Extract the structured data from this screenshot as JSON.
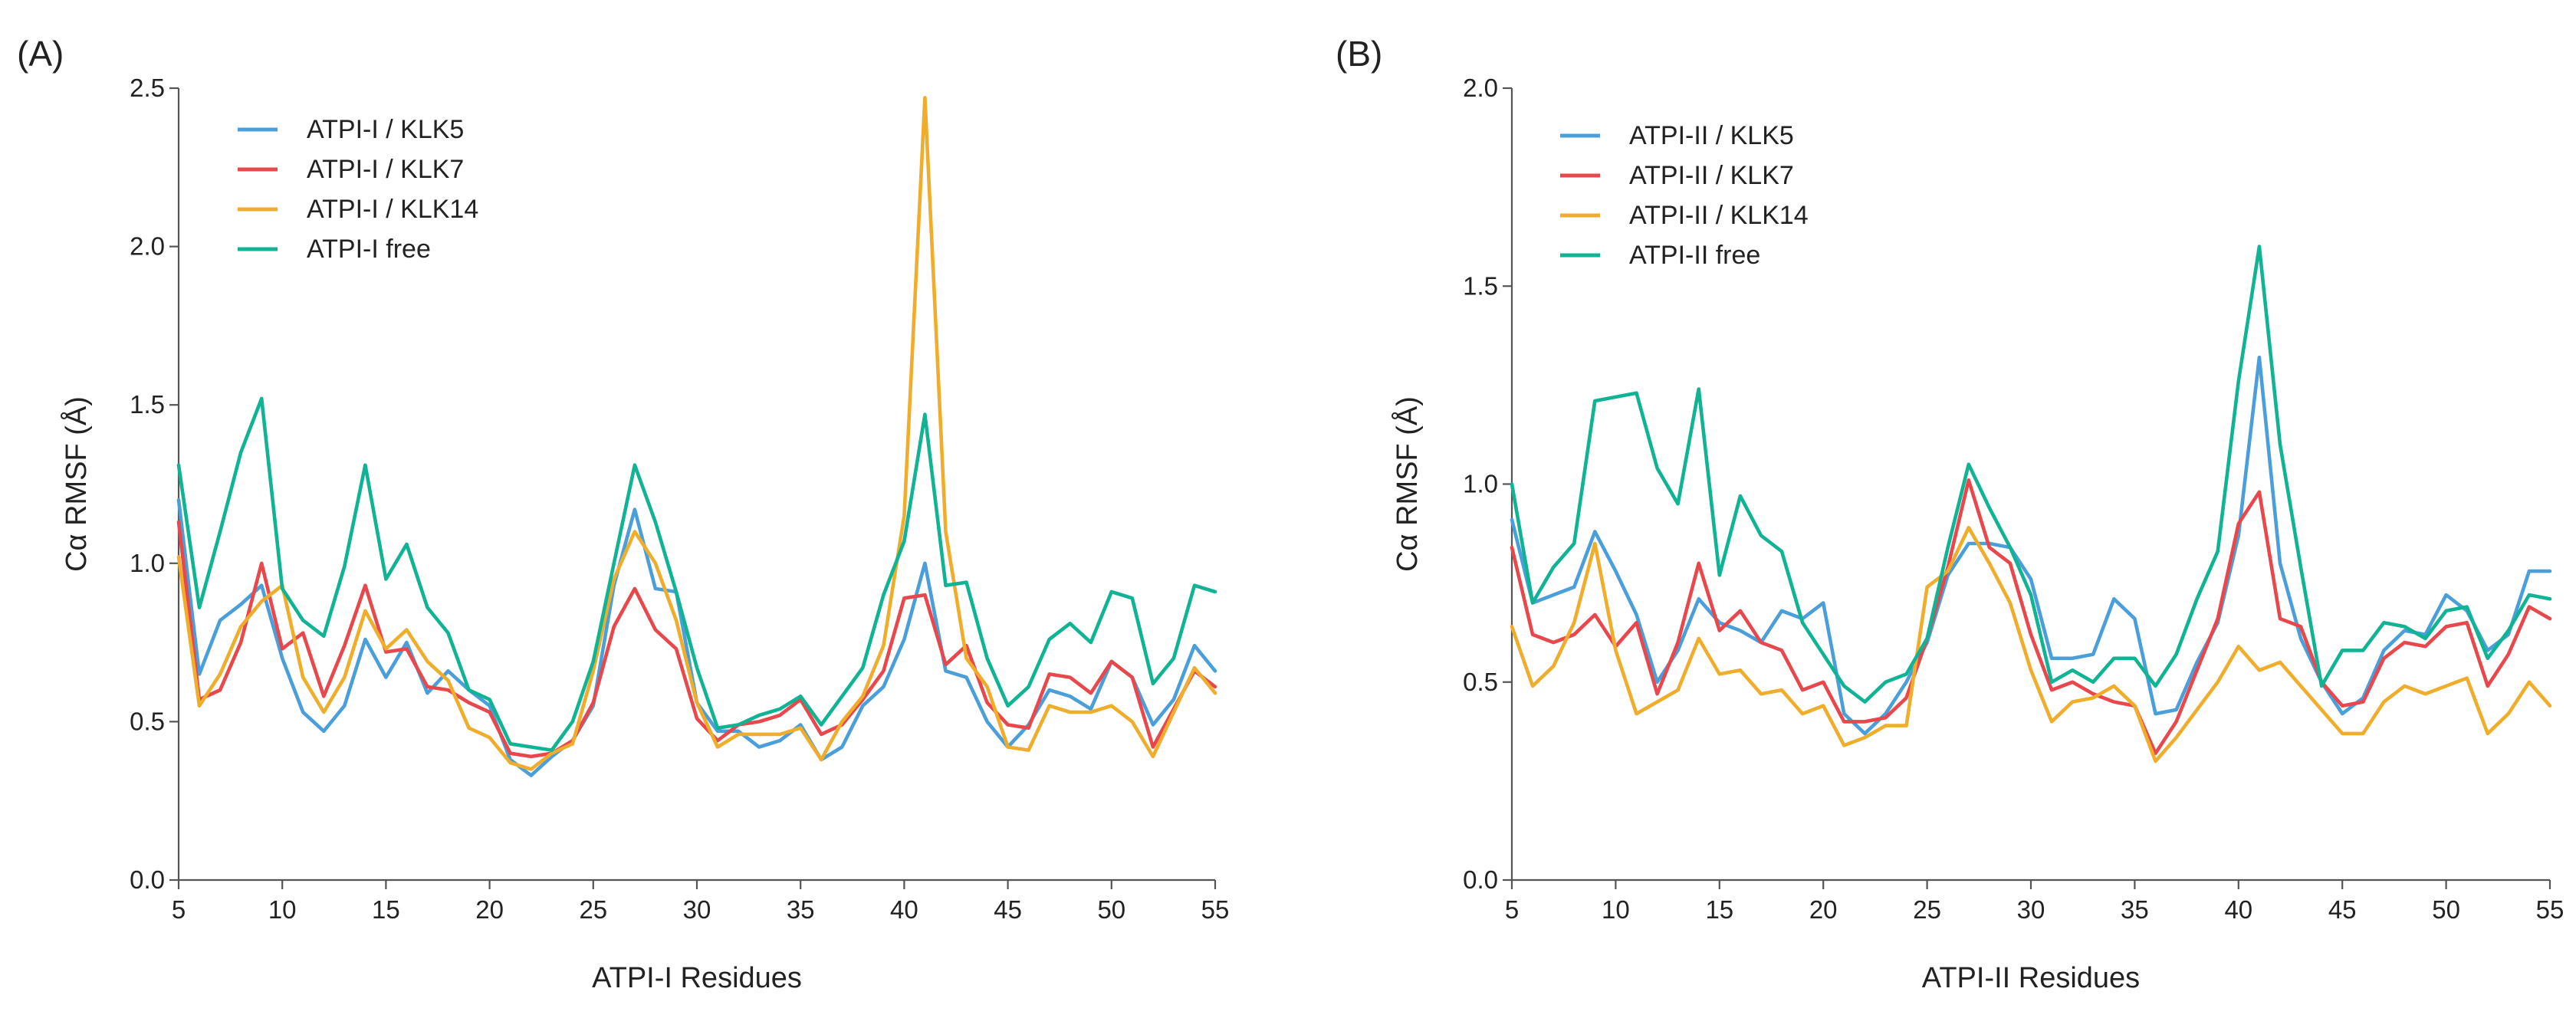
{
  "chart_data": [
    {
      "type": "line",
      "panel_label": "(A)",
      "title": "",
      "xlabel": "ATPI-I Residues",
      "ylabel_main": "Cα RMSF (Å)",
      "xlim": [
        5,
        55
      ],
      "ylim": [
        0,
        2.5
      ],
      "xticks": [
        5,
        10,
        15,
        20,
        25,
        30,
        35,
        40,
        45,
        50,
        55
      ],
      "yticks": [
        "0.0",
        "0.5",
        "1.0",
        "1.5",
        "2.0",
        "2.5"
      ],
      "grid": false,
      "legend_position": "top-left",
      "x": [
        5,
        6,
        7,
        8,
        9,
        10,
        11,
        12,
        13,
        14,
        15,
        16,
        17,
        18,
        19,
        20,
        21,
        22,
        23,
        24,
        25,
        26,
        27,
        28,
        29,
        30,
        31,
        32,
        33,
        34,
        35,
        36,
        37,
        38,
        39,
        40,
        41,
        42,
        43,
        44,
        45,
        46,
        47,
        48,
        49,
        50,
        51,
        52,
        53,
        54,
        55
      ],
      "series": [
        {
          "name": "ATPI-I / KLK5",
          "color": "#4a9fdb",
          "values": [
            1.2,
            0.65,
            0.82,
            0.87,
            0.93,
            0.7,
            0.53,
            0.47,
            0.55,
            0.76,
            0.64,
            0.75,
            0.59,
            0.66,
            0.6,
            0.55,
            0.38,
            0.33,
            0.39,
            0.44,
            0.55,
            0.93,
            1.17,
            0.92,
            0.91,
            0.56,
            0.47,
            0.47,
            0.42,
            0.44,
            0.49,
            0.38,
            0.42,
            0.55,
            0.61,
            0.76,
            1.0,
            0.66,
            0.64,
            0.5,
            0.42,
            0.49,
            0.6,
            0.58,
            0.54,
            0.69,
            0.64,
            0.49,
            0.57,
            0.74,
            0.66
          ]
        },
        {
          "name": "ATPI-I / KLK7",
          "color": "#e8474c",
          "values": [
            1.13,
            0.57,
            0.6,
            0.75,
            1.0,
            0.73,
            0.78,
            0.58,
            0.74,
            0.93,
            0.72,
            0.73,
            0.61,
            0.6,
            0.56,
            0.53,
            0.4,
            0.39,
            0.4,
            0.44,
            0.56,
            0.8,
            0.92,
            0.79,
            0.73,
            0.51,
            0.44,
            0.49,
            0.5,
            0.52,
            0.57,
            0.46,
            0.49,
            0.57,
            0.66,
            0.89,
            0.9,
            0.68,
            0.74,
            0.56,
            0.49,
            0.48,
            0.65,
            0.64,
            0.59,
            0.69,
            0.64,
            0.42,
            0.54,
            0.66,
            0.61
          ]
        },
        {
          "name": "ATPI-I / KLK14",
          "color": "#f0ad2b",
          "values": [
            1.02,
            0.55,
            0.65,
            0.8,
            0.88,
            0.93,
            0.64,
            0.53,
            0.64,
            0.85,
            0.73,
            0.79,
            0.69,
            0.63,
            0.48,
            0.45,
            0.37,
            0.35,
            0.4,
            0.43,
            0.66,
            0.95,
            1.1,
            1.0,
            0.82,
            0.56,
            0.42,
            0.46,
            0.46,
            0.46,
            0.48,
            0.38,
            0.5,
            0.58,
            0.74,
            1.15,
            2.47,
            1.1,
            0.7,
            0.61,
            0.42,
            0.41,
            0.55,
            0.53,
            0.53,
            0.55,
            0.5,
            0.39,
            0.53,
            0.67,
            0.59
          ]
        },
        {
          "name": "ATPI-I free",
          "color": "#10b394",
          "values": [
            1.31,
            0.86,
            1.1,
            1.35,
            1.52,
            0.92,
            0.82,
            0.77,
            0.99,
            1.31,
            0.95,
            1.06,
            0.86,
            0.78,
            0.6,
            0.57,
            0.43,
            0.42,
            0.41,
            0.5,
            0.69,
            1.0,
            1.31,
            1.13,
            0.91,
            0.67,
            0.48,
            0.49,
            0.52,
            0.54,
            0.58,
            0.49,
            0.58,
            0.67,
            0.9,
            1.07,
            1.47,
            0.93,
            0.94,
            0.7,
            0.55,
            0.61,
            0.76,
            0.81,
            0.75,
            0.91,
            0.89,
            0.62,
            0.7,
            0.93,
            0.91
          ]
        }
      ]
    },
    {
      "type": "line",
      "panel_label": "(B)",
      "title": "",
      "xlabel": "ATPI-II Residues",
      "ylabel_main": "Cα RMSF (Å)",
      "xlim": [
        5,
        55
      ],
      "ylim": [
        0,
        2.0
      ],
      "xticks": [
        5,
        10,
        15,
        20,
        25,
        30,
        35,
        40,
        45,
        50,
        55
      ],
      "yticks": [
        "0.0",
        "0.5",
        "1.0",
        "1.5",
        "2.0"
      ],
      "grid": false,
      "legend_position": "top-left",
      "x": [
        5,
        6,
        7,
        8,
        9,
        10,
        11,
        12,
        13,
        14,
        15,
        16,
        17,
        18,
        19,
        20,
        21,
        22,
        23,
        24,
        25,
        26,
        27,
        28,
        29,
        30,
        31,
        32,
        33,
        34,
        35,
        36,
        37,
        38,
        39,
        40,
        41,
        42,
        43,
        44,
        45,
        46,
        47,
        48,
        49,
        50,
        51,
        52,
        53,
        54,
        55
      ],
      "series": [
        {
          "name": "ATPI-II / KLK5",
          "color": "#4a9fdb",
          "values": [
            0.91,
            0.7,
            0.72,
            0.74,
            0.88,
            0.78,
            0.67,
            0.5,
            0.58,
            0.71,
            0.65,
            0.63,
            0.6,
            0.68,
            0.66,
            0.7,
            0.42,
            0.37,
            0.42,
            0.5,
            0.6,
            0.77,
            0.85,
            0.85,
            0.84,
            0.76,
            0.56,
            0.56,
            0.57,
            0.71,
            0.66,
            0.42,
            0.43,
            0.55,
            0.65,
            0.87,
            1.32,
            0.8,
            0.61,
            0.5,
            0.42,
            0.46,
            0.58,
            0.63,
            0.62,
            0.72,
            0.68,
            0.58,
            0.62,
            0.78,
            0.78
          ]
        },
        {
          "name": "ATPI-II / KLK7",
          "color": "#e8474c",
          "values": [
            0.84,
            0.62,
            0.6,
            0.62,
            0.67,
            0.59,
            0.65,
            0.47,
            0.6,
            0.8,
            0.63,
            0.68,
            0.6,
            0.58,
            0.48,
            0.5,
            0.4,
            0.4,
            0.41,
            0.46,
            0.61,
            0.79,
            1.01,
            0.84,
            0.8,
            0.62,
            0.48,
            0.5,
            0.47,
            0.45,
            0.44,
            0.32,
            0.4,
            0.53,
            0.66,
            0.9,
            0.98,
            0.66,
            0.64,
            0.5,
            0.44,
            0.45,
            0.56,
            0.6,
            0.59,
            0.64,
            0.65,
            0.49,
            0.57,
            0.69,
            0.66
          ]
        },
        {
          "name": "ATPI-II / KLK14",
          "color": "#f0ad2b",
          "values": [
            0.64,
            0.49,
            0.54,
            0.65,
            0.85,
            0.58,
            0.42,
            0.45,
            0.48,
            0.61,
            0.52,
            0.53,
            0.47,
            0.48,
            0.42,
            0.44,
            0.34,
            0.36,
            0.39,
            0.39,
            0.74,
            0.78,
            0.89,
            0.8,
            0.7,
            0.53,
            0.4,
            0.45,
            0.46,
            0.49,
            0.44,
            0.3,
            0.36,
            0.43,
            0.5,
            0.59,
            0.53,
            0.55,
            0.49,
            0.43,
            0.37,
            0.37,
            0.45,
            0.49,
            0.47,
            0.49,
            0.51,
            0.37,
            0.42,
            0.5,
            0.44
          ]
        },
        {
          "name": "ATPI-II free",
          "color": "#10b394",
          "values": [
            1.0,
            0.7,
            0.79,
            0.85,
            1.21,
            1.22,
            1.23,
            1.04,
            0.95,
            1.24,
            0.77,
            0.97,
            0.87,
            0.83,
            0.65,
            0.57,
            0.49,
            0.45,
            0.5,
            0.52,
            0.61,
            0.84,
            1.05,
            0.94,
            0.84,
            0.72,
            0.5,
            0.53,
            0.5,
            0.56,
            0.56,
            0.49,
            0.57,
            0.71,
            0.83,
            1.26,
            1.6,
            1.1,
            0.79,
            0.49,
            0.58,
            0.58,
            0.65,
            0.64,
            0.61,
            0.68,
            0.69,
            0.56,
            0.63,
            0.72,
            0.71
          ]
        }
      ]
    }
  ]
}
